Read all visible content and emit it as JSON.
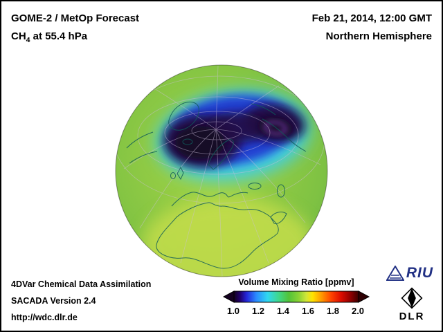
{
  "header": {
    "title_line1": "GOME-2 / MetOp Forecast",
    "species": "CH",
    "species_sub": "4",
    "level_text": " at 55.4 hPa",
    "datetime": "Feb 21, 2014, 12:00 GMT",
    "region": "Northern Hemisphere"
  },
  "footer": {
    "line1": "4DVar Chemical Data Assimilation",
    "line2": "SACADA Version 2.4",
    "line3": "http://wdc.dlr.de"
  },
  "logos": {
    "riu_text": "RIU",
    "riu_color": "#213084",
    "dlr_text": "DLR"
  },
  "globe_colors": {
    "base_green_light": "#a6d545",
    "base_green": "#7fc243",
    "base_green_dark": "#64b040",
    "subtropic_yellow": "#c9df4c",
    "fringe_cyan": "#3ecfe8",
    "vortex_blue": "#2141d2",
    "vortex_dark": "#231044",
    "vortex_core": "#160827",
    "core_ring": "#8f3fd2",
    "coastline": "#0f5a5a",
    "graticule": "#cdbfdd"
  },
  "chart_data": {
    "type": "heatmap",
    "title": "GOME-2 / MetOp Forecast CH4 at 55.4 hPa",
    "projection": "orthographic",
    "view": "Northern Hemisphere",
    "valid_time": "Feb 21, 2014, 12:00 GMT",
    "quantity": "CH4 Volume Mixing Ratio",
    "units": "ppmv",
    "colorbar": {
      "title": "Volume Mixing Ratio [ppmv]",
      "orientation": "horizontal",
      "range": [
        1.0,
        2.0
      ],
      "ticks": [
        "1.0",
        "1.2",
        "1.4",
        "1.6",
        "1.8",
        "2.0"
      ],
      "left_arrow_color": "#140020",
      "right_arrow_color": "#2e0002",
      "stops": [
        {
          "pos": 0.0,
          "color": "#14001e"
        },
        {
          "pos": 0.05,
          "color": "#20006e"
        },
        {
          "pos": 0.1,
          "color": "#2424d8"
        },
        {
          "pos": 0.18,
          "color": "#2a8cff"
        },
        {
          "pos": 0.27,
          "color": "#2fd8f0"
        },
        {
          "pos": 0.36,
          "color": "#3fd88a"
        },
        {
          "pos": 0.44,
          "color": "#52c338"
        },
        {
          "pos": 0.52,
          "color": "#8ad334"
        },
        {
          "pos": 0.58,
          "color": "#cfe63a"
        },
        {
          "pos": 0.63,
          "color": "#ffe400"
        },
        {
          "pos": 0.7,
          "color": "#ff9c00"
        },
        {
          "pos": 0.78,
          "color": "#ff4400"
        },
        {
          "pos": 0.86,
          "color": "#dc0c00"
        },
        {
          "pos": 0.93,
          "color": "#960000"
        },
        {
          "pos": 1.0,
          "color": "#3c0000"
        }
      ]
    },
    "map_values": [
      {
        "region": "Arctic polar vortex core (dark violet blob over pole)",
        "approx_ppmv": 1.0
      },
      {
        "region": "Secondary vortex core with bright ring (toward Siberia)",
        "approx_ppmv": 1.05
      },
      {
        "region": "Vortex interior (blue)",
        "approx_ppmv": 1.2
      },
      {
        "region": "Vortex edge fringe (cyan)",
        "approx_ppmv": 1.3
      },
      {
        "region": "Mid-latitude background (green)",
        "approx_ppmv": 1.45
      },
      {
        "region": "Subtropics / northern Africa (yellow-green)",
        "approx_ppmv": 1.55
      }
    ]
  }
}
